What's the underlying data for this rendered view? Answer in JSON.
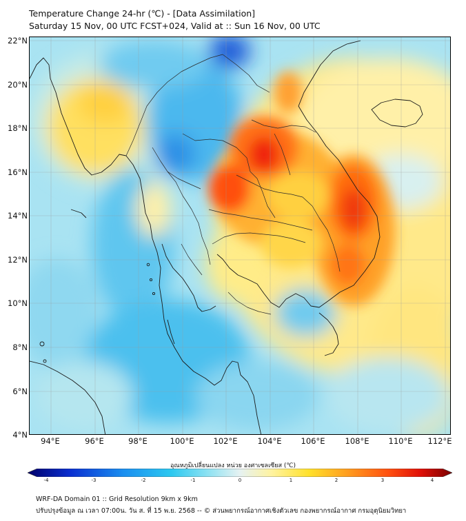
{
  "header": {
    "title_line1": "Temperature Change 24-hr (℃) - [Data Assimilation]",
    "title_line2": "Saturday 15 Nov, 00 UTC FCST+024, Valid at :: Sun 16 Nov, 00 UTC"
  },
  "map": {
    "lat_labels": [
      "22°N",
      "20°N",
      "18°N",
      "16°N",
      "14°N",
      "12°N",
      "10°N",
      "8°N",
      "6°N",
      "4°N"
    ],
    "lon_labels": [
      "94°E",
      "96°E",
      "98°E",
      "100°E",
      "102°E",
      "104°E",
      "106°E",
      "108°E",
      "110°E",
      "112°E"
    ],
    "extent": {
      "lon_min": 93.0,
      "lon_max": 112.3,
      "lat_min": 4.0,
      "lat_max": 22.2
    }
  },
  "colorbar": {
    "title": "อุณหภูมิเปลี่ยนแปลง หน่วย องศาเซลเซียส (℃)",
    "tick_labels": [
      "-4",
      "-3",
      "-2",
      "-1",
      "0",
      "1",
      "2",
      "3",
      "4"
    ],
    "range": [
      -4,
      4
    ],
    "stops": [
      {
        "value": -4.0,
        "color": "#00006a"
      },
      {
        "value": -3.2,
        "color": "#0a2fd0"
      },
      {
        "value": -2.2,
        "color": "#1a8ef0"
      },
      {
        "value": -1.3,
        "color": "#2cc8f0"
      },
      {
        "value": -0.6,
        "color": "#8ee2f2"
      },
      {
        "value": 0.0,
        "color": "#e6f2f2"
      },
      {
        "value": 0.6,
        "color": "#fff3a0"
      },
      {
        "value": 1.3,
        "color": "#ffe12c"
      },
      {
        "value": 2.0,
        "color": "#ffa020"
      },
      {
        "value": 2.8,
        "color": "#ff5010"
      },
      {
        "value": 3.4,
        "color": "#e01008"
      },
      {
        "value": 4.0,
        "color": "#7a0000"
      }
    ]
  },
  "footer": {
    "line1": "WRF-DA Domain 01 :: Grid Resolution 9km x 9km",
    "line2": "ปรับปรุงข้อมูล ณ เวลา 07:00น. วัน ส. ที่ 15 พ.ย. 2568 -- © ส่วนพยากรณ์อากาศเชิงตัวเลข กองพยากรณ์อากาศ กรมอุตุนิยมวิทยา"
  }
}
